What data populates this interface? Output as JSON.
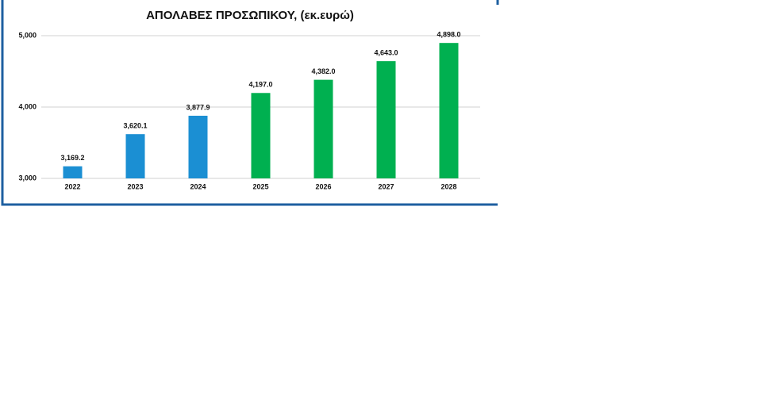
{
  "chart_data": {
    "type": "bar",
    "title": "ΑΠΟΛΑΒΕΣ ΠΡΟΣΩΠΙΚΟΥ, (εκ.ευρώ)",
    "categories": [
      "2022",
      "2023",
      "2024",
      "2025",
      "2026",
      "2027",
      "2028"
    ],
    "values": [
      3169.2,
      3620.1,
      3877.9,
      4197.0,
      4382.0,
      4643.0,
      4898.0
    ],
    "value_labels": [
      "3,169.2",
      "3,620.1",
      "3,877.9",
      "4,197.0",
      "4,382.0",
      "4,643.0",
      "4,898.0"
    ],
    "colors": [
      "#1b8fd3",
      "#1b8fd3",
      "#1b8fd3",
      "#00b050",
      "#00b050",
      "#00b050",
      "#00b050"
    ],
    "ylim": [
      3000,
      5000
    ],
    "yticks": [
      {
        "value": 3000,
        "label": "3,000"
      },
      {
        "value": 4000,
        "label": "4,000"
      },
      {
        "value": 5000,
        "label": "5,000"
      }
    ],
    "grid": true
  }
}
